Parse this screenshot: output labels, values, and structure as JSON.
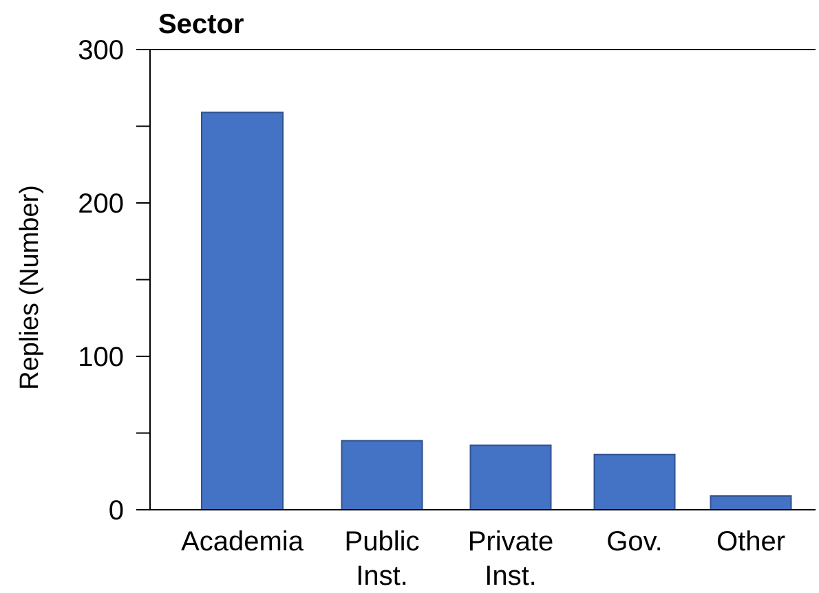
{
  "chart_data": {
    "type": "bar",
    "title": "Sector",
    "xlabel": "",
    "ylabel": "Replies (Number)",
    "categories": [
      [
        "Academia"
      ],
      [
        "Public",
        "Inst."
      ],
      [
        "Private",
        "Inst."
      ],
      [
        "Gov."
      ],
      [
        "Other"
      ]
    ],
    "values": [
      259,
      45,
      42,
      36,
      9
    ],
    "ylim": [
      0,
      300
    ],
    "yticks": [
      0,
      100,
      200,
      300
    ],
    "yticks_minor": [
      50,
      150,
      250
    ],
    "grid": false,
    "bar_color": "#4472C4",
    "bar_edge_color": "#2F528F"
  }
}
